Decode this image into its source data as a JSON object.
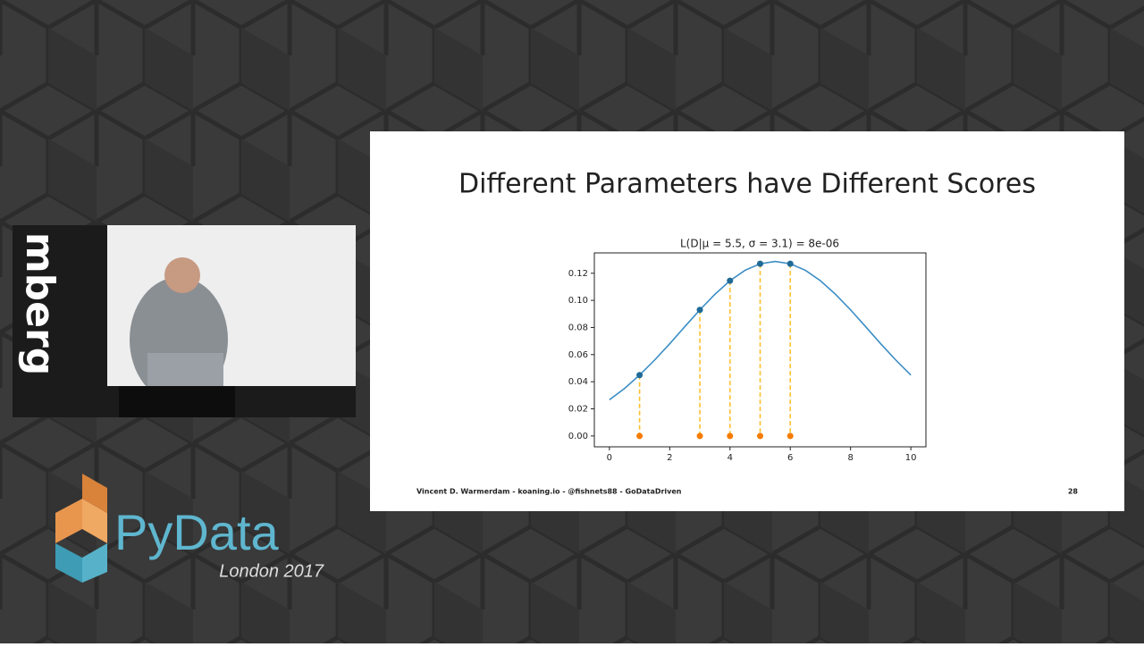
{
  "slide": {
    "title": "Different Parameters have Different Scores",
    "footer": "Vincent D. Warmerdam - koaning.io - @fishnets88 - GoDataDriven",
    "page_number": "28"
  },
  "branding": {
    "logo": "PyData",
    "event": "London 2017",
    "wall_text": "mberg"
  },
  "chart_data": {
    "type": "line",
    "title": "L(D|μ = 5.5, σ = 3.1) = 8e-06",
    "xlim": [
      -0.5,
      10.5
    ],
    "ylim": [
      -0.008,
      0.135
    ],
    "xticks": [
      0,
      2,
      4,
      6,
      8,
      10
    ],
    "yticks": [
      {
        "value": 0,
        "label": "0.00"
      },
      {
        "value": 0.02,
        "label": "0.02"
      },
      {
        "value": 0.04,
        "label": "0.04"
      },
      {
        "value": 0.06,
        "label": "0.06"
      },
      {
        "value": 0.08,
        "label": "0.08"
      },
      {
        "value": 0.1,
        "label": "0.10"
      },
      {
        "value": 0.12,
        "label": "0.12"
      }
    ],
    "drop_lines": {
      "color": "#fbc02d",
      "dashed": true
    },
    "series": [
      {
        "kind": "line",
        "color": "#3a8dc4",
        "x": [
          0,
          0.5,
          1,
          1.5,
          2,
          2.5,
          3,
          3.5,
          4,
          4.5,
          5,
          5.5,
          6,
          6.5,
          7,
          7.5,
          8,
          8.5,
          9,
          9.5,
          10
        ],
        "values": [
          0.0267,
          0.035,
          0.0449,
          0.056,
          0.068,
          0.0806,
          0.093,
          0.1045,
          0.1145,
          0.1222,
          0.127,
          0.1287,
          0.127,
          0.1222,
          0.1145,
          0.1045,
          0.093,
          0.0806,
          0.068,
          0.056,
          0.0449
        ]
      },
      {
        "kind": "scatter",
        "color": "#1f6a96",
        "x": [
          1,
          3,
          4,
          5,
          6
        ],
        "values": [
          0.0449,
          0.093,
          0.1145,
          0.127,
          0.127
        ]
      },
      {
        "kind": "scatter",
        "color": "#f57c00",
        "x": [
          1,
          3,
          4,
          5,
          6
        ],
        "values": [
          0,
          0,
          0,
          0,
          0
        ]
      }
    ]
  }
}
